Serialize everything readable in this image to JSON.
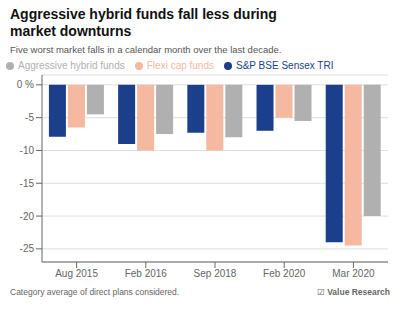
{
  "chart_data": {
    "type": "bar",
    "title": "Aggressive hybrid funds fall less during\nmarket downturns",
    "subtitle": "Five worst market falls in a calendar month over the last decade.",
    "annotations": [
      "Category average of direct plans considered.",
      "☑ Value Research"
    ],
    "categories": [
      "Aug 2015",
      "Feb 2016",
      "Sep 2018",
      "Feb 2020",
      "Mar 2020"
    ],
    "series": [
      {
        "name": "S&P BSE Sensex TRI",
        "color": "#1b3f8b",
        "values": [
          -7.9,
          -9.0,
          -7.3,
          -7.0,
          -24.0
        ]
      },
      {
        "name": "Flexi cap funds",
        "color": "#f5b8a0",
        "values": [
          -6.5,
          -10.0,
          -10.0,
          -5.0,
          -24.5
        ]
      },
      {
        "name": "Aggressive hybrid funds",
        "color": "#b0b0b0",
        "values": [
          -4.5,
          -7.5,
          -8.0,
          -5.5,
          -20.0
        ]
      }
    ],
    "ylim": [
      -27,
      1.5
    ],
    "yticks": [
      {
        "value": 0,
        "label": "0 %"
      },
      -5,
      -10,
      -15,
      -20,
      -25
    ],
    "grid": true,
    "legend": "top"
  }
}
